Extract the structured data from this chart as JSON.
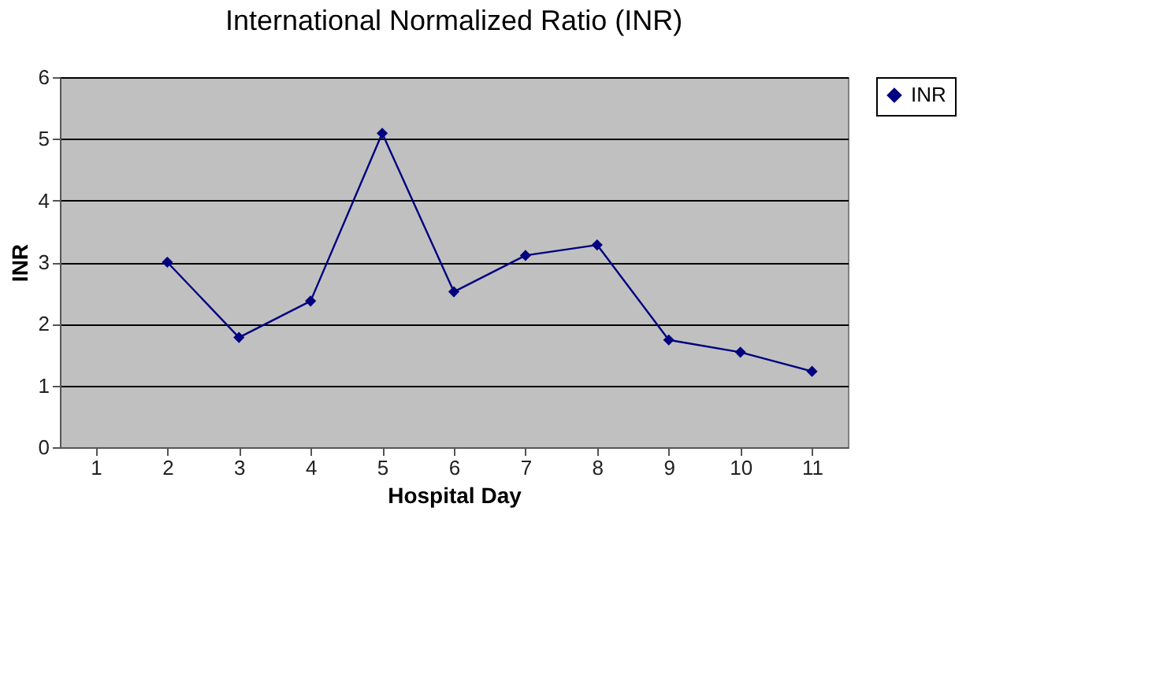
{
  "chart_data": {
    "type": "line",
    "title": "International Normalized Ratio (INR)",
    "xlabel": "Hospital Day",
    "ylabel": "INR",
    "categories": [
      "1",
      "2",
      "3",
      "4",
      "5",
      "6",
      "7",
      "8",
      "9",
      "10",
      "11"
    ],
    "series": [
      {
        "name": "INR",
        "color": "#000080",
        "values": [
          null,
          3.0,
          1.78,
          2.37,
          5.09,
          2.52,
          3.11,
          3.28,
          1.74,
          1.54,
          1.23
        ]
      }
    ],
    "ylim": [
      0,
      6
    ],
    "yticks": [
      0,
      1,
      2,
      3,
      4,
      5,
      6
    ],
    "grid": "y",
    "legend": "right",
    "marker": "diamond",
    "line_style": "solid"
  }
}
